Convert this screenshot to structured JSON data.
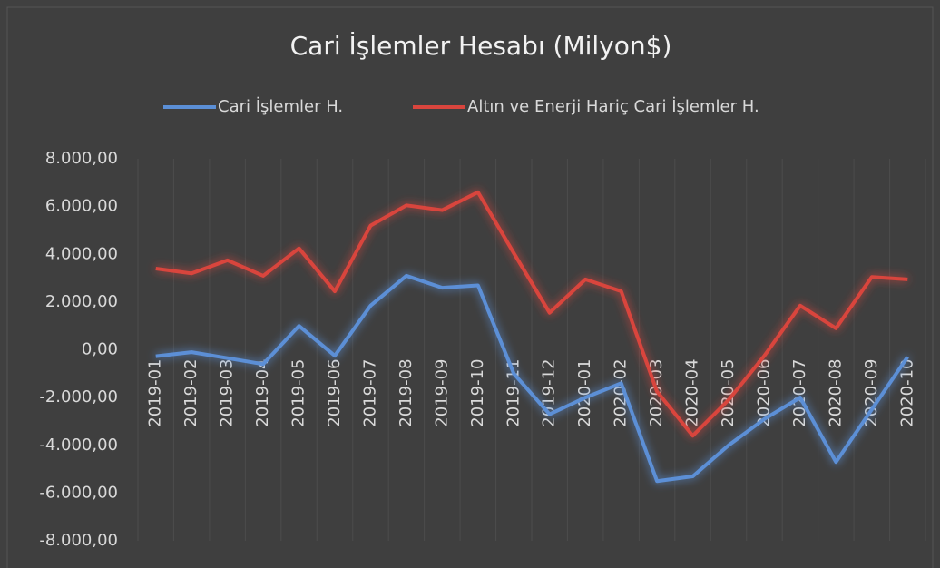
{
  "chart_data": {
    "type": "line",
    "title": "Cari İşlemler Hesabı (Milyon$)",
    "categories": [
      "2019-01",
      "2019-02",
      "2019-03",
      "2019-04",
      "2019-05",
      "2019-06",
      "2019-07",
      "2019-08",
      "2019-09",
      "2019-10",
      "2019-11",
      "2019-12",
      "2020-01",
      "2020-02",
      "2020-03",
      "2020-04",
      "2020-05",
      "2020-06",
      "2020-07",
      "2020-08",
      "2020-09",
      "2020-10"
    ],
    "series": [
      {
        "name": "Cari İşlemler H.",
        "color": "#5b8fd6",
        "values": [
          -270,
          -100,
          -350,
          -600,
          1000,
          -250,
          1850,
          3100,
          2600,
          2700,
          -1000,
          -2700,
          -2000,
          -1400,
          -5500,
          -5300,
          -4000,
          -2900,
          -2000,
          -4700,
          -2500,
          -300
        ]
      },
      {
        "name": "Altın ve Enerji Hariç Cari İşlemler H.",
        "color": "#d9453d",
        "values": [
          3400,
          3200,
          3750,
          3100,
          4250,
          2450,
          5200,
          6050,
          5850,
          6600,
          4050,
          1550,
          2950,
          2450,
          -1750,
          -3600,
          -2100,
          -250,
          1850,
          900,
          3050,
          2950
        ]
      }
    ],
    "ylim": [
      -8000,
      8000
    ],
    "yticks": [
      {
        "value": -8000,
        "label": "-8.000,00"
      },
      {
        "value": -6000,
        "label": "-6.000,00"
      },
      {
        "value": -4000,
        "label": "-4.000,00"
      },
      {
        "value": -2000,
        "label": "-2.000,00"
      },
      {
        "value": 0,
        "label": "0,00"
      },
      {
        "value": 2000,
        "label": "2.000,00"
      },
      {
        "value": 4000,
        "label": "4.000,00"
      },
      {
        "value": 6000,
        "label": "6.000,00"
      },
      {
        "value": 8000,
        "label": "8.000,00"
      }
    ],
    "legend": "top"
  }
}
